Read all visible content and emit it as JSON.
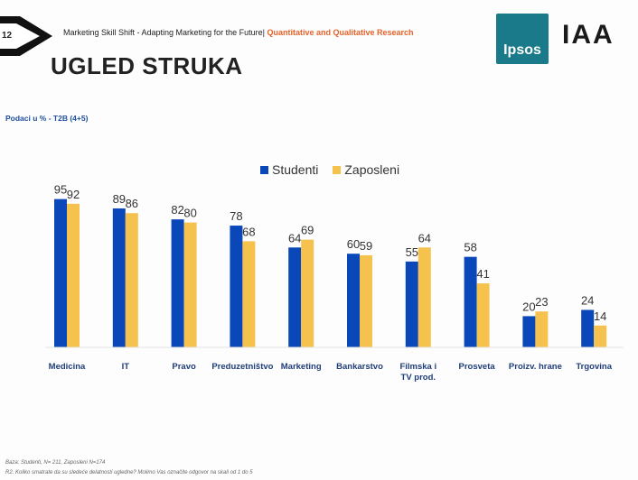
{
  "slide": {
    "number": "12",
    "header_left": "Marketing Skill Shift - Adapting Marketing for the Future|",
    "header_right": "Quantitative and Qualitative Research",
    "title": "UGLED STRUKA",
    "subtitle": "Podaci u % - T2B (4+5)",
    "logo_ipsos": "Ipsos",
    "logo_iaa": "IAA",
    "footnote_1": "Baza: Studenti, N= 211, Zaposleni N=174",
    "footnote_2": "R2. Koliko smatrate da su sledeće delatnosti ugledne? Molimo Vas označite odgovor na skali od 1 do 5"
  },
  "colors": {
    "studenti": "#0a47b8",
    "zaposleni": "#f5c24e",
    "accent": "#e8622a",
    "ipsos": "#1a7a8a"
  },
  "chart_data": {
    "type": "bar",
    "title": "",
    "xlabel": "",
    "ylabel": "",
    "ylim": [
      0,
      100
    ],
    "legend_position": "top-center",
    "grid": false,
    "categories": [
      "Medicina",
      "IT",
      "Pravo",
      "Preduzetništvo",
      "Marketing",
      "Bankarstvo",
      "Filmska i\nTV prod.",
      "Prosveta",
      "Proizv. hrane",
      "Trgovina"
    ],
    "series": [
      {
        "name": "Studenti",
        "values": [
          95,
          89,
          82,
          78,
          64,
          60,
          55,
          58,
          20,
          24
        ]
      },
      {
        "name": "Zaposleni",
        "values": [
          92,
          86,
          80,
          68,
          69,
          59,
          64,
          41,
          23,
          14
        ]
      }
    ]
  }
}
